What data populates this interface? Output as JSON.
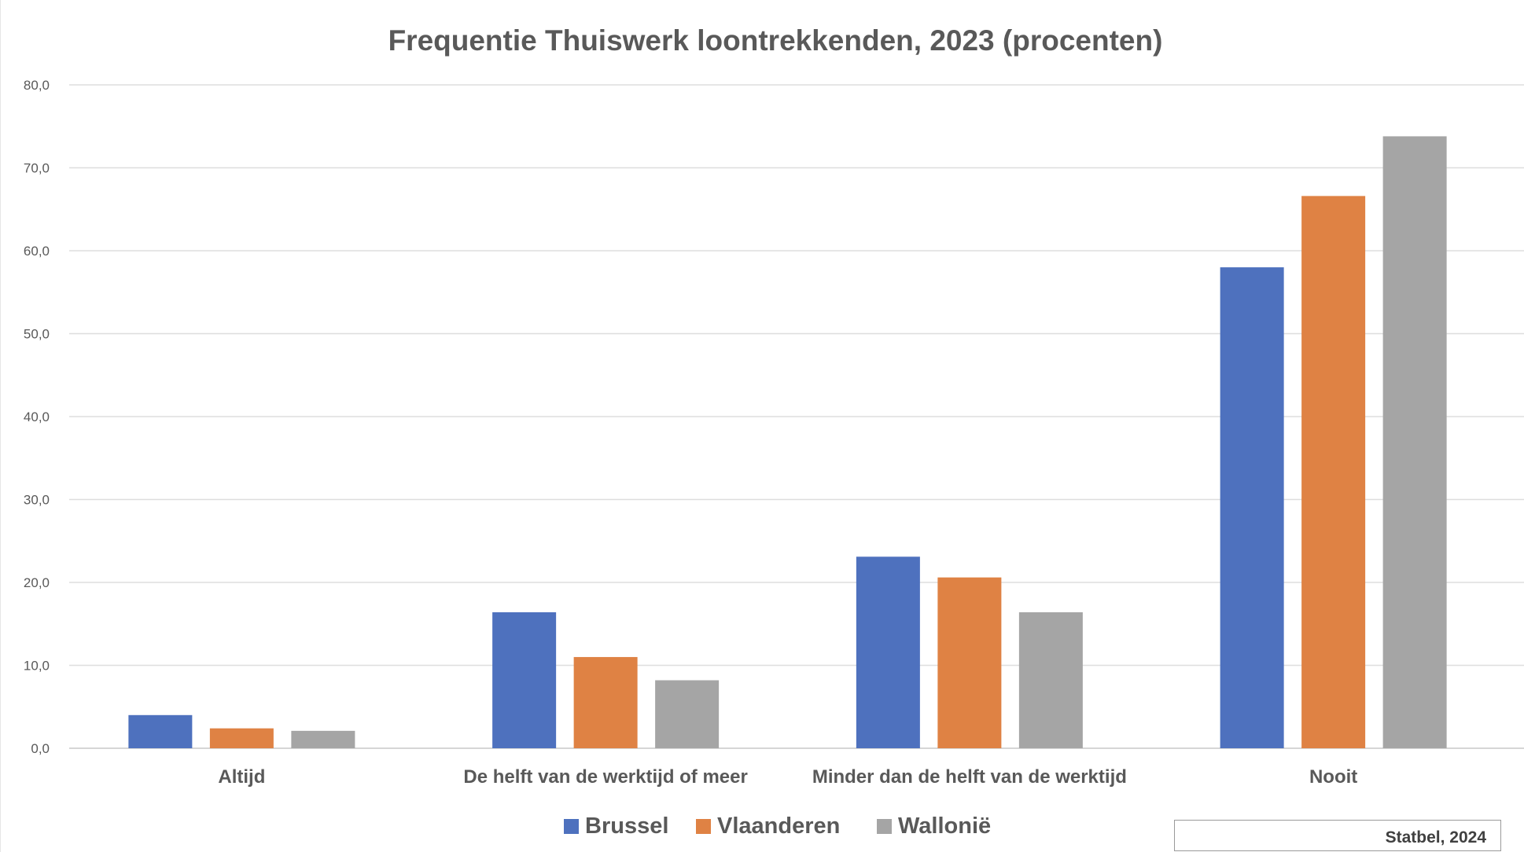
{
  "chart_data": {
    "type": "bar",
    "title": "Frequentie Thuiswerk loontrekkenden, 2023 (procenten)",
    "xlabel": "",
    "ylabel": "",
    "categories": [
      "Altijd",
      "De helft van de werktijd of meer",
      "Minder dan de helft van de werktijd",
      "Nooit"
    ],
    "series": [
      {
        "name": "Brussel",
        "color": "#4e71be",
        "values": [
          4.0,
          16.4,
          23.1,
          58.0
        ]
      },
      {
        "name": "Vlaanderen",
        "color": "#df8244",
        "values": [
          2.4,
          11.0,
          20.6,
          66.6
        ]
      },
      {
        "name": "Wallonië",
        "color": "#a5a5a5",
        "values": [
          2.1,
          8.2,
          16.4,
          73.8
        ]
      }
    ],
    "ylim": [
      0,
      80
    ],
    "yticks": [
      "0,0",
      "10,0",
      "20,0",
      "30,0",
      "40,0",
      "50,0",
      "60,0",
      "70,0",
      "80,0"
    ],
    "grid": true,
    "legend_position": "bottom"
  },
  "source_note": "Statbel, 2024"
}
